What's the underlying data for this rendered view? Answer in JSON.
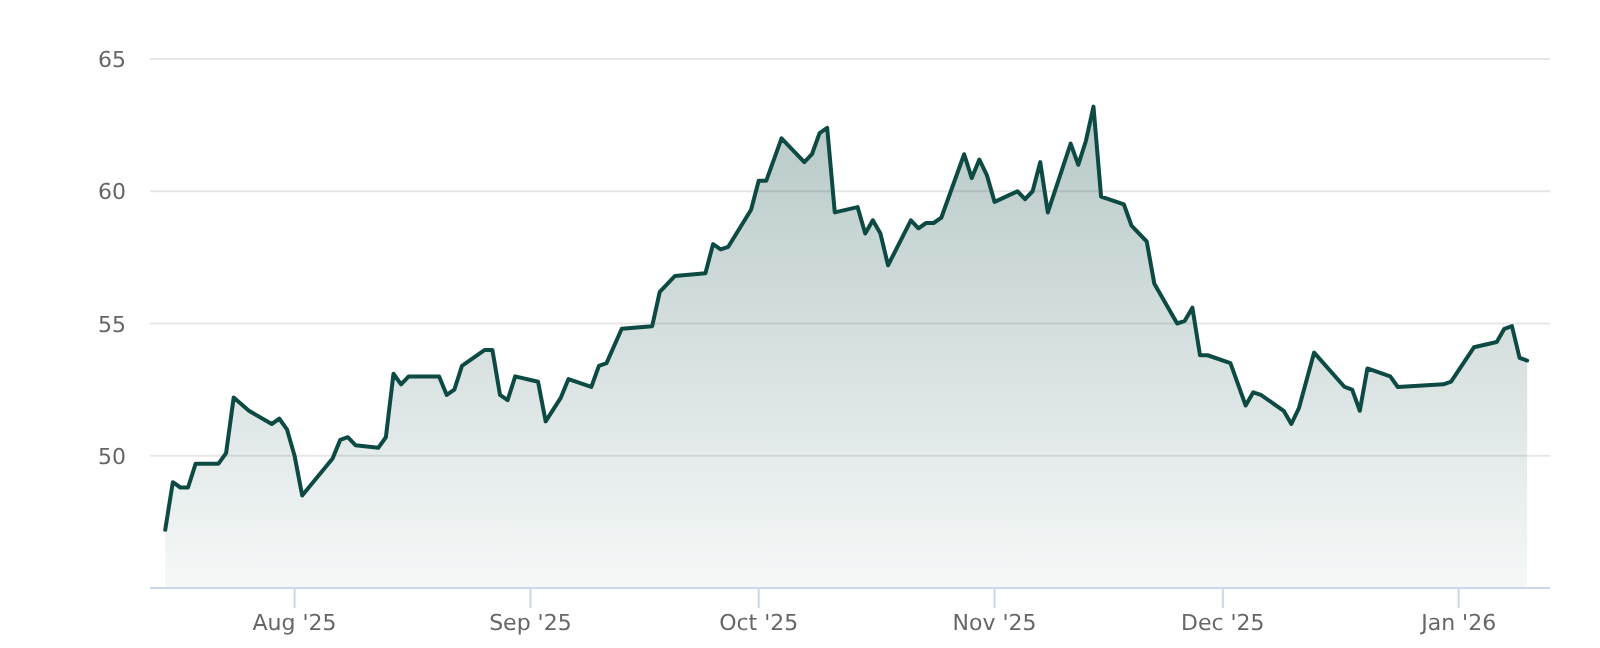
{
  "chart_data": {
    "type": "area",
    "x": [
      "2025-07-15",
      "2025-07-16",
      "2025-07-17",
      "2025-07-18",
      "2025-07-19",
      "2025-07-22",
      "2025-07-23",
      "2025-07-24",
      "2025-07-26",
      "2025-07-29",
      "2025-07-30",
      "2025-07-31",
      "2025-08-01",
      "2025-08-02",
      "2025-08-06",
      "2025-08-07",
      "2025-08-08",
      "2025-08-09",
      "2025-08-12",
      "2025-08-13",
      "2025-08-14",
      "2025-08-15",
      "2025-08-16",
      "2025-08-20",
      "2025-08-21",
      "2025-08-22",
      "2025-08-23",
      "2025-08-26",
      "2025-08-27",
      "2025-08-28",
      "2025-08-29",
      "2025-08-30",
      "2025-09-02",
      "2025-09-03",
      "2025-09-05",
      "2025-09-06",
      "2025-09-09",
      "2025-09-10",
      "2025-09-11",
      "2025-09-13",
      "2025-09-17",
      "2025-09-18",
      "2025-09-20",
      "2025-09-24",
      "2025-09-25",
      "2025-09-26",
      "2025-09-27",
      "2025-09-30",
      "2025-10-01",
      "2025-10-02",
      "2025-10-04",
      "2025-10-07",
      "2025-10-08",
      "2025-10-09",
      "2025-10-10",
      "2025-10-11",
      "2025-10-14",
      "2025-10-15",
      "2025-10-16",
      "2025-10-17",
      "2025-10-18",
      "2025-10-21",
      "2025-10-22",
      "2025-10-23",
      "2025-10-24",
      "2025-10-25",
      "2025-10-28",
      "2025-10-29",
      "2025-10-30",
      "2025-10-31",
      "2025-11-01",
      "2025-11-04",
      "2025-11-05",
      "2025-11-06",
      "2025-11-07",
      "2025-11-08",
      "2025-11-11",
      "2025-11-12",
      "2025-11-13",
      "2025-11-14",
      "2025-11-15",
      "2025-11-18",
      "2025-11-19",
      "2025-11-20",
      "2025-11-21",
      "2025-11-22",
      "2025-11-25",
      "2025-11-26",
      "2025-11-27",
      "2025-11-28",
      "2025-11-29",
      "2025-12-02",
      "2025-12-04",
      "2025-12-05",
      "2025-12-06",
      "2025-12-09",
      "2025-12-10",
      "2025-12-11",
      "2025-12-13",
      "2025-12-17",
      "2025-12-18",
      "2025-12-19",
      "2025-12-20",
      "2025-12-23",
      "2025-12-24",
      "2025-12-30",
      "2025-12-31",
      "2026-01-03",
      "2026-01-06",
      "2026-01-07",
      "2026-01-08",
      "2026-01-09",
      "2026-01-10"
    ],
    "series": [
      {
        "color": "#0e4a44",
        "values": [
          47.2,
          49.0,
          48.8,
          48.8,
          49.7,
          49.7,
          50.1,
          52.2,
          51.7,
          51.2,
          51.4,
          51.0,
          50.0,
          48.5,
          49.9,
          50.6,
          50.7,
          50.4,
          50.3,
          50.7,
          53.1,
          52.7,
          53.0,
          53.0,
          52.3,
          52.5,
          53.4,
          54.0,
          54.0,
          52.3,
          52.1,
          53.0,
          52.8,
          51.3,
          52.2,
          52.9,
          52.6,
          53.4,
          53.5,
          54.8,
          54.9,
          56.2,
          56.8,
          56.9,
          58.0,
          57.8,
          57.9,
          59.3,
          60.4,
          60.4,
          62.0,
          61.1,
          61.4,
          62.2,
          62.4,
          59.2,
          59.4,
          58.4,
          58.9,
          58.4,
          57.2,
          58.9,
          58.6,
          58.8,
          58.8,
          59.0,
          61.4,
          60.5,
          61.2,
          60.6,
          59.6,
          60.0,
          59.7,
          60.0,
          61.1,
          59.2,
          61.8,
          61.0,
          61.9,
          63.2,
          59.8,
          59.5,
          58.7,
          58.4,
          58.1,
          56.5,
          55.0,
          55.1,
          55.6,
          53.8,
          53.8,
          53.5,
          51.9,
          52.4,
          52.3,
          51.7,
          51.2,
          51.8,
          53.9,
          52.6,
          52.5,
          51.7,
          53.3,
          53.0,
          52.6,
          52.7,
          52.8,
          54.1,
          54.3,
          54.8,
          54.9,
          53.7,
          53.6
        ]
      }
    ],
    "xlim": [
      "2025-07-13",
      "2026-01-13"
    ],
    "xticks": [
      {
        "value": "2025-08-01",
        "label": "Aug '25"
      },
      {
        "value": "2025-09-01",
        "label": "Sep '25"
      },
      {
        "value": "2025-10-01",
        "label": "Oct '25"
      },
      {
        "value": "2025-11-01",
        "label": "Nov '25"
      },
      {
        "value": "2025-12-01",
        "label": "Dec '25"
      },
      {
        "value": "2026-01-01",
        "label": "Jan '26"
      }
    ],
    "ylim": [
      45,
      65
    ],
    "yticks": [
      50,
      55,
      60,
      65
    ],
    "grid": "y"
  }
}
